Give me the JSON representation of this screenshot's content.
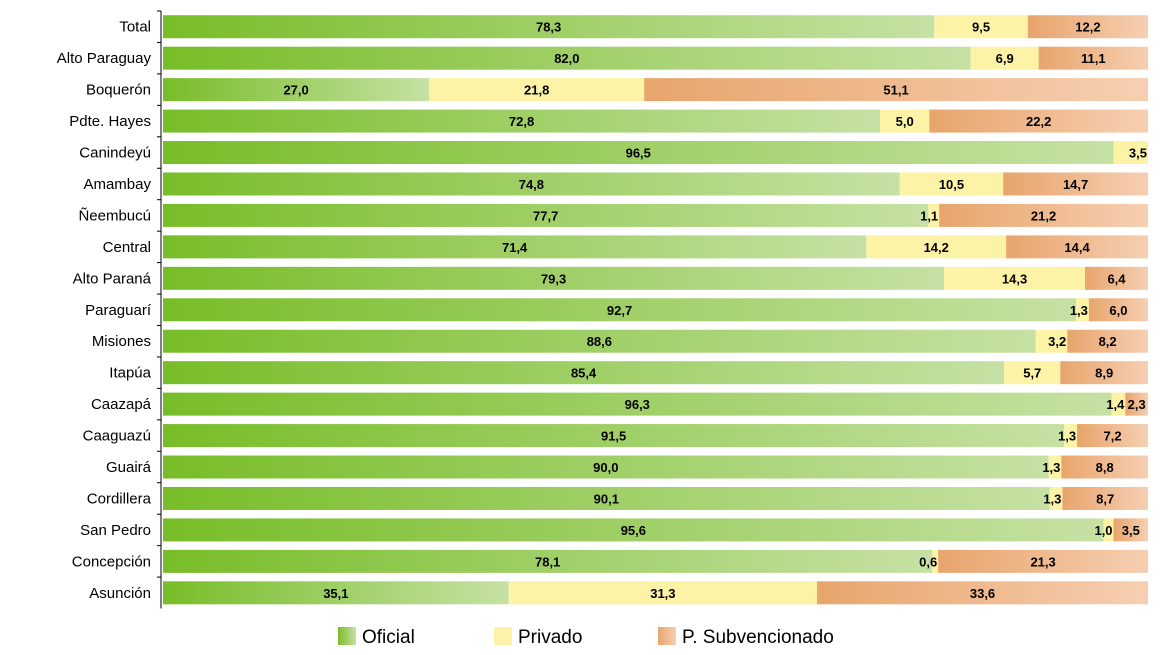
{
  "chart_data": {
    "type": "bar",
    "orientation": "horizontal",
    "stacked": true,
    "percent_stacked": true,
    "categories": [
      "Total",
      "Alto Paraguay",
      "Boquerón",
      "Pdte. Hayes",
      "Canindeyú",
      "Amambay",
      "Ñeembucú",
      "Central",
      "Alto Paraná",
      "Paraguarí",
      "Misiones",
      "Itapúa",
      "Caazapá",
      "Caaguazú",
      "Guairá",
      "Cordillera",
      "San Pedro",
      "Concepción",
      "Asunción"
    ],
    "series": [
      {
        "name": "Oficial",
        "values": [
          78.3,
          82.0,
          27.0,
          72.8,
          96.5,
          74.8,
          77.7,
          71.4,
          79.3,
          92.7,
          88.6,
          85.4,
          96.3,
          91.5,
          90.0,
          90.1,
          95.6,
          78.1,
          35.1
        ],
        "labels": [
          "78,3",
          "82,0",
          "27,0",
          "72,8",
          "96,5",
          "74,8",
          "77,7",
          "71,4",
          "79,3",
          "92,7",
          "88,6",
          "85,4",
          "96,3",
          "91,5",
          "90,0",
          "90,1",
          "95,6",
          "78,1",
          "35,1"
        ]
      },
      {
        "name": "Privado",
        "values": [
          9.5,
          6.9,
          21.8,
          5.0,
          3.5,
          10.5,
          1.1,
          14.2,
          14.3,
          1.3,
          3.2,
          5.7,
          1.4,
          1.3,
          1.3,
          1.3,
          1.0,
          0.6,
          31.3
        ],
        "labels": [
          "9,5",
          "6,9",
          "21,8",
          "5,0",
          "3,5",
          "10,5",
          "1,1",
          "14,2",
          "14,3",
          "1,3",
          "3,2",
          "5,7",
          "1,4",
          "1,3",
          "1,3",
          "1,3",
          "1,0",
          "0,6",
          "31,3"
        ]
      },
      {
        "name": "P. Subvencionado",
        "values": [
          12.2,
          11.1,
          51.1,
          22.2,
          0,
          14.7,
          21.2,
          14.4,
          6.4,
          6.0,
          8.2,
          8.9,
          2.3,
          7.2,
          8.8,
          8.7,
          3.5,
          21.3,
          33.6
        ],
        "labels": [
          "12,2",
          "11,1",
          "51,1",
          "22,2",
          "",
          "14,7",
          "21,2",
          "14,4",
          "6,4",
          "6,0",
          "8,2",
          "8,9",
          "2,3",
          "7,2",
          "8,8",
          "8,7",
          "3,5",
          "21,3",
          "33,6"
        ]
      }
    ],
    "xlim": [
      0,
      100
    ],
    "grid": false,
    "legend_position": "bottom",
    "colors": {
      "Oficial": [
        "#78bd28",
        "#c6e1a4"
      ],
      "Privado": [
        "#fcf3a6",
        "#fcf3a6"
      ],
      "P. Subvencionado": [
        "#e8a56c",
        "#f6cfb2"
      ]
    }
  }
}
